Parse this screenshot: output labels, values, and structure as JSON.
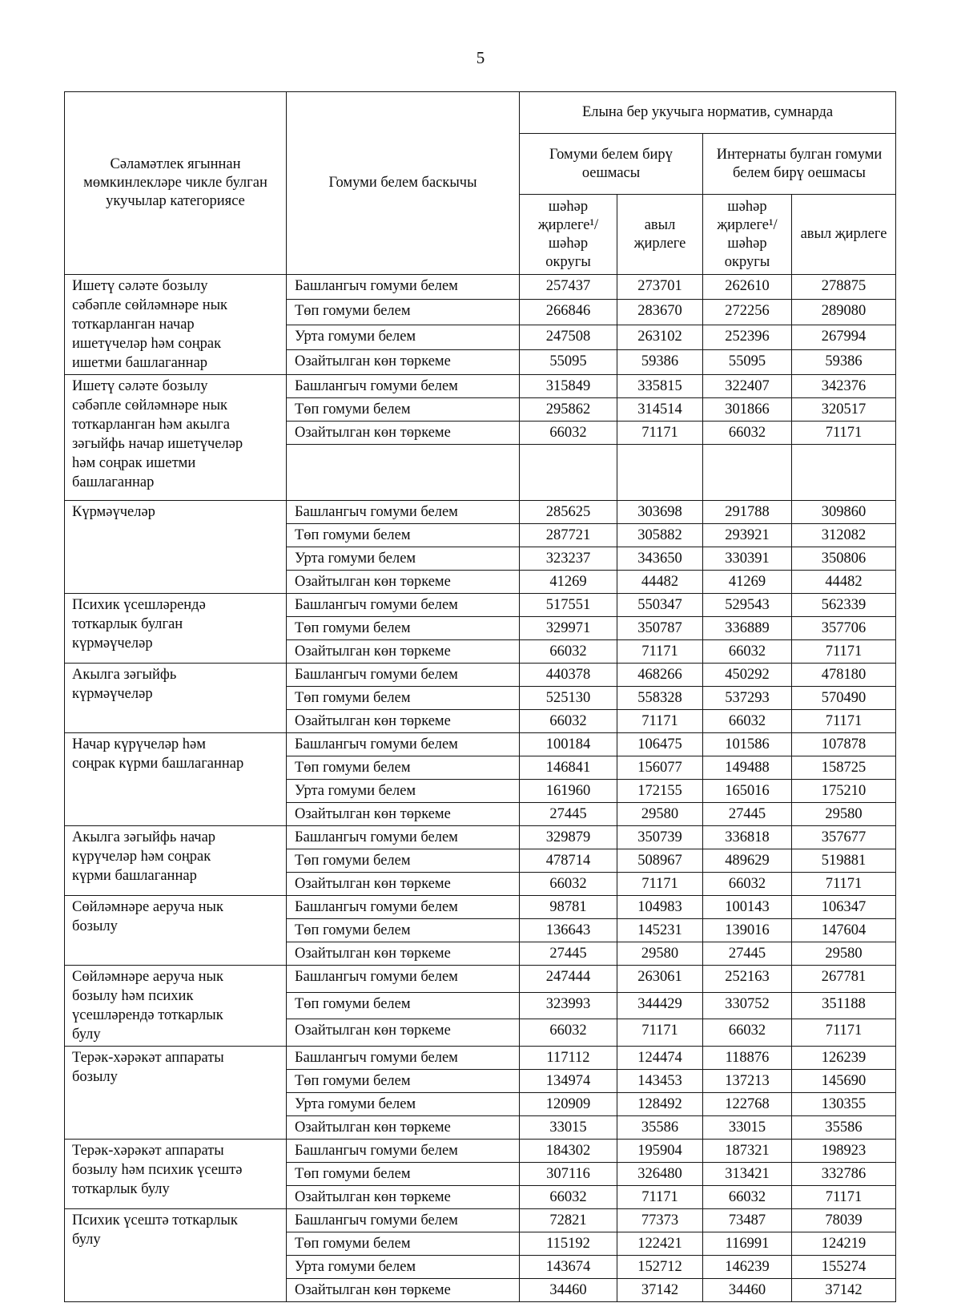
{
  "page": {
    "number": "5"
  },
  "table": {
    "header": {
      "category": "Сәламәтлек ягыннан мөмкинлекләре чикле булган укучылар категориясе",
      "stage": "Гомуми белем баскычы",
      "norm_title": "Елына бер укучыга норматив, сумнарда",
      "org_general": "Гомуми белем бирү оешмасы",
      "org_boarding": "Интернаты булган гомуми белем бирү оешмасы",
      "sub_urban": "шәһәр җирлеге¹/ шәһәр округы",
      "sub_rural": "авыл җирлеге"
    },
    "groups": [
      {
        "category": "Ишетү сәләте бозылу сәбәпле сөйләмнәре нык тоткарланган начар ишетүчеләр һәм соңрак ишетми башлаганнар",
        "rows": [
          {
            "stage": "Башлангыч гомуми белем",
            "values": [
              "257437",
              "273701",
              "262610",
              "278875"
            ]
          },
          {
            "stage": "Төп гомуми белем",
            "values": [
              "266846",
              "283670",
              "272256",
              "289080"
            ]
          },
          {
            "stage": "Урта гомуми белем",
            "values": [
              "247508",
              "263102",
              "252396",
              "267994"
            ]
          },
          {
            "stage": "Озайтылган көн төркеме",
            "values": [
              "55095",
              "59386",
              "55095",
              "59386"
            ]
          }
        ]
      },
      {
        "category": "Ишетү сәләте бозылу сәбәпле сөйләмнәре нык тоткарланган һәм акылга зәгыйфь начар ишетүчеләр һәм соңрак ишетми башлаганнар",
        "spacer_row": true,
        "rows": [
          {
            "stage": "Башлангыч гомуми белем",
            "values": [
              "315849",
              "335815",
              "322407",
              "342376"
            ]
          },
          {
            "stage": "Төп гомуми белем",
            "values": [
              "295862",
              "314514",
              "301866",
              "320517"
            ]
          },
          {
            "stage": "Озайтылган көн төркеме",
            "values": [
              "66032",
              "71171",
              "66032",
              "71171"
            ]
          }
        ]
      },
      {
        "category": "Күрмәүчеләр",
        "rows": [
          {
            "stage": "Башлангыч гомуми белем",
            "values": [
              "285625",
              "303698",
              "291788",
              "309860"
            ]
          },
          {
            "stage": "Төп гомуми белем",
            "values": [
              "287721",
              "305882",
              "293921",
              "312082"
            ]
          },
          {
            "stage": "Урта гомуми белем",
            "values": [
              "323237",
              "343650",
              "330391",
              "350806"
            ]
          },
          {
            "stage": "Озайтылган көн төркеме",
            "values": [
              "41269",
              "44482",
              "41269",
              "44482"
            ]
          }
        ]
      },
      {
        "category": "Психик үсешләрендә тоткарлык булган күрмәүчеләр",
        "rows": [
          {
            "stage": "Башлангыч гомуми белем",
            "values": [
              "517551",
              "550347",
              "529543",
              "562339"
            ]
          },
          {
            "stage": "Төп гомуми белем",
            "values": [
              "329971",
              "350787",
              "336889",
              "357706"
            ]
          },
          {
            "stage": "Озайтылган көн төркеме",
            "values": [
              "66032",
              "71171",
              "66032",
              "71171"
            ]
          }
        ]
      },
      {
        "category": "Акылга зәгыйфь күрмәүчеләр",
        "rows": [
          {
            "stage": "Башлангыч гомуми белем",
            "values": [
              "440378",
              "468266",
              "450292",
              "478180"
            ]
          },
          {
            "stage": "Төп гомуми белем",
            "values": [
              "525130",
              "558328",
              "537293",
              "570490"
            ]
          },
          {
            "stage": "Озайтылган көн төркеме",
            "values": [
              "66032",
              "71171",
              "66032",
              "71171"
            ]
          }
        ]
      },
      {
        "category": "Начар күрүчеләр һәм соңрак күрми башлаганнар",
        "rows": [
          {
            "stage": "Башлангыч гомуми белем",
            "values": [
              "100184",
              "106475",
              "101586",
              "107878"
            ]
          },
          {
            "stage": "Төп гомуми белем",
            "values": [
              "146841",
              "156077",
              "149488",
              "158725"
            ]
          },
          {
            "stage": "Урта гомуми белем",
            "values": [
              "161960",
              "172155",
              "165016",
              "175210"
            ]
          },
          {
            "stage": "Озайтылган көн төркеме",
            "values": [
              "27445",
              "29580",
              "27445",
              "29580"
            ]
          }
        ]
      },
      {
        "category": "Акылга зәгыйфь начар күрүчеләр һәм соңрак күрми башлаганнар",
        "rows": [
          {
            "stage": "Башлангыч гомуми белем",
            "values": [
              "329879",
              "350739",
              "336818",
              "357677"
            ]
          },
          {
            "stage": "Төп гомуми белем",
            "values": [
              "478714",
              "508967",
              "489629",
              "519881"
            ]
          },
          {
            "stage": "Озайтылган көн төркеме",
            "values": [
              "66032",
              "71171",
              "66032",
              "71171"
            ]
          }
        ]
      },
      {
        "category": "Сөйләмнәре аеруча нык бозылу",
        "rows": [
          {
            "stage": "Башлангыч гомуми белем",
            "values": [
              "98781",
              "104983",
              "100143",
              "106347"
            ]
          },
          {
            "stage": "Төп гомуми белем",
            "values": [
              "136643",
              "145231",
              "139016",
              "147604"
            ]
          },
          {
            "stage": "Озайтылган көн төркеме",
            "values": [
              "27445",
              "29580",
              "27445",
              "29580"
            ]
          }
        ]
      },
      {
        "category": "Сөйләмнәре аеруча нык бозылу һәм психик үсешләрендә тоткарлык булу",
        "rows": [
          {
            "stage": "Башлангыч гомуми белем",
            "values": [
              "247444",
              "263061",
              "252163",
              "267781"
            ]
          },
          {
            "stage": "Төп гомуми белем",
            "values": [
              "323993",
              "344429",
              "330752",
              "351188"
            ]
          },
          {
            "stage": "Озайтылган көн төркеме",
            "values": [
              "66032",
              "71171",
              "66032",
              "71171"
            ]
          }
        ]
      },
      {
        "category": "Терәк-хәрәкәт аппараты бозылу",
        "rows": [
          {
            "stage": "Башлангыч гомуми белем",
            "values": [
              "117112",
              "124474",
              "118876",
              "126239"
            ]
          },
          {
            "stage": "Төп гомуми белем",
            "values": [
              "134974",
              "143453",
              "137213",
              "145690"
            ]
          },
          {
            "stage": "Урта гомуми белем",
            "values": [
              "120909",
              "128492",
              "122768",
              "130355"
            ]
          },
          {
            "stage": "Озайтылган көн төркеме",
            "values": [
              "33015",
              "35586",
              "33015",
              "35586"
            ]
          }
        ]
      },
      {
        "category": "Терәк-хәрәкәт аппараты бозылу һәм психик үсештә тоткарлык булу",
        "rows": [
          {
            "stage": "Башлангыч гомуми белем",
            "values": [
              "184302",
              "195904",
              "187321",
              "198923"
            ]
          },
          {
            "stage": "Төп гомуми белем",
            "values": [
              "307116",
              "326480",
              "313421",
              "332786"
            ]
          },
          {
            "stage": "Озайтылган көн төркеме",
            "values": [
              "66032",
              "71171",
              "66032",
              "71171"
            ]
          }
        ]
      },
      {
        "category": "Психик үсештә тоткарлык булу",
        "rows": [
          {
            "stage": "Башлангыч гомуми белем",
            "values": [
              "72821",
              "77373",
              "73487",
              "78039"
            ]
          },
          {
            "stage": "Төп гомуми белем",
            "values": [
              "115192",
              "122421",
              "116991",
              "124219"
            ]
          },
          {
            "stage": "Урта гомуми белем",
            "values": [
              "143674",
              "152712",
              "146239",
              "155274"
            ]
          },
          {
            "stage": "Озайтылган көн төркеме",
            "values": [
              "34460",
              "37142",
              "34460",
              "37142"
            ]
          }
        ]
      }
    ]
  }
}
